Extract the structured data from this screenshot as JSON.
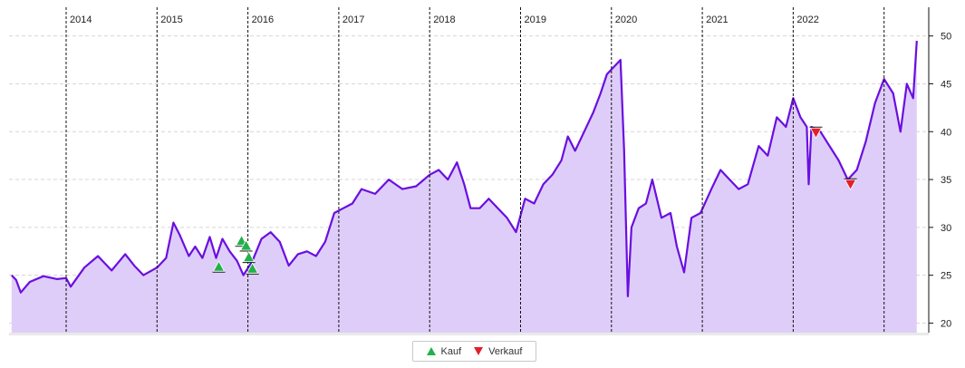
{
  "chart_data": {
    "type": "area",
    "title": "",
    "xlabel": "",
    "ylabel": "",
    "ylim": [
      19,
      53
    ],
    "xlim": [
      2013.4,
      2023.4
    ],
    "y_ticks": [
      20,
      25,
      30,
      35,
      40,
      45,
      50
    ],
    "y_axis_side": "right",
    "year_labels": [
      "2014",
      "2015",
      "2016",
      "2017",
      "2018",
      "2019",
      "2020",
      "2021",
      "2022"
    ],
    "year_positions": [
      2014,
      2015,
      2016,
      2017,
      2018,
      2019,
      2020,
      2021,
      2022,
      2023
    ],
    "grid": true,
    "colors": {
      "line": "#6a0fe0",
      "fill": "#dfcdf9",
      "buy": "#22b04a",
      "sell": "#e0202a"
    },
    "series": [
      {
        "values": [
          [
            2013.4,
            25.0
          ],
          [
            2013.45,
            24.5
          ],
          [
            2013.5,
            23.2
          ],
          [
            2013.6,
            24.3
          ],
          [
            2013.75,
            24.9
          ],
          [
            2013.9,
            24.6
          ],
          [
            2014.0,
            24.7
          ],
          [
            2014.05,
            23.8
          ],
          [
            2014.2,
            25.8
          ],
          [
            2014.35,
            27.0
          ],
          [
            2014.5,
            25.5
          ],
          [
            2014.65,
            27.2
          ],
          [
            2014.75,
            26.0
          ],
          [
            2014.85,
            25.0
          ],
          [
            2015.0,
            25.8
          ],
          [
            2015.1,
            26.8
          ],
          [
            2015.18,
            30.5
          ],
          [
            2015.25,
            29.2
          ],
          [
            2015.35,
            27.0
          ],
          [
            2015.42,
            28.0
          ],
          [
            2015.5,
            26.8
          ],
          [
            2015.58,
            29.0
          ],
          [
            2015.65,
            26.8
          ],
          [
            2015.72,
            28.8
          ],
          [
            2015.8,
            27.5
          ],
          [
            2015.88,
            26.5
          ],
          [
            2015.95,
            25.0
          ],
          [
            2016.05,
            26.5
          ],
          [
            2016.15,
            28.8
          ],
          [
            2016.25,
            29.5
          ],
          [
            2016.35,
            28.5
          ],
          [
            2016.45,
            26.0
          ],
          [
            2016.55,
            27.2
          ],
          [
            2016.65,
            27.5
          ],
          [
            2016.75,
            27.0
          ],
          [
            2016.85,
            28.5
          ],
          [
            2016.95,
            31.5
          ],
          [
            2017.05,
            32.0
          ],
          [
            2017.15,
            32.5
          ],
          [
            2017.25,
            34.0
          ],
          [
            2017.4,
            33.5
          ],
          [
            2017.55,
            35.0
          ],
          [
            2017.7,
            34.0
          ],
          [
            2017.85,
            34.3
          ],
          [
            2018.0,
            35.5
          ],
          [
            2018.1,
            36.0
          ],
          [
            2018.2,
            35.0
          ],
          [
            2018.3,
            36.8
          ],
          [
            2018.38,
            34.5
          ],
          [
            2018.45,
            32.0
          ],
          [
            2018.55,
            32.0
          ],
          [
            2018.65,
            33.0
          ],
          [
            2018.75,
            32.0
          ],
          [
            2018.85,
            31.0
          ],
          [
            2018.95,
            29.5
          ],
          [
            2019.05,
            33.0
          ],
          [
            2019.15,
            32.5
          ],
          [
            2019.25,
            34.5
          ],
          [
            2019.35,
            35.5
          ],
          [
            2019.45,
            37.0
          ],
          [
            2019.52,
            39.5
          ],
          [
            2019.6,
            38.0
          ],
          [
            2019.7,
            40.0
          ],
          [
            2019.8,
            42.0
          ],
          [
            2019.88,
            44.0
          ],
          [
            2019.95,
            46.0
          ],
          [
            2020.05,
            47.0
          ],
          [
            2020.1,
            47.5
          ],
          [
            2020.14,
            38.0
          ],
          [
            2020.18,
            22.8
          ],
          [
            2020.22,
            30.0
          ],
          [
            2020.3,
            32.0
          ],
          [
            2020.38,
            32.5
          ],
          [
            2020.45,
            35.0
          ],
          [
            2020.55,
            31.0
          ],
          [
            2020.65,
            31.5
          ],
          [
            2020.72,
            28.0
          ],
          [
            2020.8,
            25.3
          ],
          [
            2020.88,
            31.0
          ],
          [
            2020.98,
            31.5
          ],
          [
            2021.1,
            34.0
          ],
          [
            2021.2,
            36.0
          ],
          [
            2021.3,
            35.0
          ],
          [
            2021.4,
            34.0
          ],
          [
            2021.5,
            34.5
          ],
          [
            2021.62,
            38.5
          ],
          [
            2021.72,
            37.5
          ],
          [
            2021.82,
            41.5
          ],
          [
            2021.92,
            40.5
          ],
          [
            2022.0,
            43.5
          ],
          [
            2022.08,
            41.5
          ],
          [
            2022.15,
            40.5
          ],
          [
            2022.17,
            34.5
          ],
          [
            2022.2,
            40.5
          ],
          [
            2022.3,
            40.0
          ],
          [
            2022.4,
            38.5
          ],
          [
            2022.5,
            37.0
          ],
          [
            2022.6,
            35.0
          ],
          [
            2022.7,
            36.0
          ],
          [
            2022.8,
            39.0
          ],
          [
            2022.9,
            43.0
          ],
          [
            2023.0,
            45.5
          ],
          [
            2023.1,
            44.0
          ],
          [
            2023.18,
            40.0
          ],
          [
            2023.25,
            45.0
          ],
          [
            2023.32,
            43.5
          ],
          [
            2023.36,
            49.5
          ]
        ]
      }
    ],
    "markers": {
      "buy": [
        [
          2015.68,
          25.8
        ],
        [
          2015.93,
          28.5
        ],
        [
          2015.98,
          28.0
        ],
        [
          2016.01,
          26.8
        ],
        [
          2016.05,
          25.6
        ]
      ],
      "sell": [
        [
          2022.25,
          40.0
        ],
        [
          2022.63,
          34.6
        ]
      ]
    },
    "legend": {
      "position": "bottom-center",
      "items": [
        {
          "label": "Kauf",
          "marker": "triangle-up"
        },
        {
          "label": "Verkauf",
          "marker": "triangle-down"
        }
      ]
    }
  }
}
